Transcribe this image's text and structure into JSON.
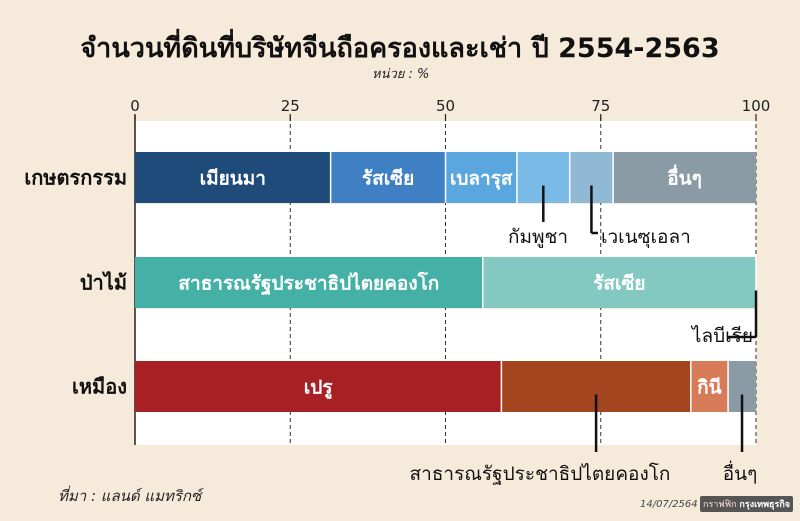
{
  "title": "จำนวนที่ดินที่บริษัทจีนถือครองและเช่า  ปี 2554-2563",
  "unit_label": "หน่วย : %",
  "source": "ที่มา : แลนด์ แมทริกซ์",
  "credit": {
    "date": "14/07/2564",
    "left": "กราฟฟิก",
    "right": "กรุงเทพธุรกิจ"
  },
  "chart_data": {
    "type": "bar",
    "orientation": "horizontal",
    "stacked": true,
    "xlim": [
      0,
      100
    ],
    "xticks": [
      "0",
      "25",
      "50",
      "75",
      "100"
    ],
    "grid": "vertical-dashed",
    "categories": [
      "เกษตรกรรม",
      "ป่าไม้",
      "เหมือง"
    ],
    "rows": [
      {
        "category": "เกษตรกรรม",
        "segments": [
          {
            "label": "เมียนมา",
            "value": 31.5,
            "color": "#1f4b7a",
            "inside": true
          },
          {
            "label": "รัสเซีย",
            "value": 18.5,
            "color": "#3f7fc4",
            "inside": true
          },
          {
            "label": "เบลารุส",
            "value": 11.5,
            "color": "#5aa6de",
            "inside": true
          },
          {
            "label": "กัมพูชา",
            "value": 8.5,
            "color": "#79bbe6",
            "inside": false
          },
          {
            "label": "เวเนซุเอลา",
            "value": 7,
            "color": "#8fb9d4",
            "inside": false
          },
          {
            "label": "อื่นๆ",
            "value": 23,
            "color": "#8b9ba5",
            "inside": true
          }
        ]
      },
      {
        "category": "ป่าไม้",
        "segments": [
          {
            "label": "สาธารณรัฐประชาธิปไตยคองโก",
            "value": 56,
            "color": "#45b0a5",
            "inside": true
          },
          {
            "label": "รัสเซีย",
            "value": 44,
            "color": "#84c9c1",
            "inside": true
          },
          {
            "label": "ไลบีเรีย",
            "value": 0.5,
            "color": "#cfe6e2",
            "inside": false
          }
        ]
      },
      {
        "category": "เหมือง",
        "segments": [
          {
            "label": "เปรู",
            "value": 59,
            "color": "#a81f24",
            "inside": true
          },
          {
            "label": "สาธารณรัฐประชาธิปไตยคองโก",
            "value": 30.5,
            "color": "#a3451f",
            "inside": false
          },
          {
            "label": "กินี",
            "value": 6,
            "color": "#d67a58",
            "inside": true
          },
          {
            "label": "อื่นๆ",
            "value": 4.5,
            "color": "#8b9ba5",
            "inside": false
          }
        ]
      }
    ]
  }
}
